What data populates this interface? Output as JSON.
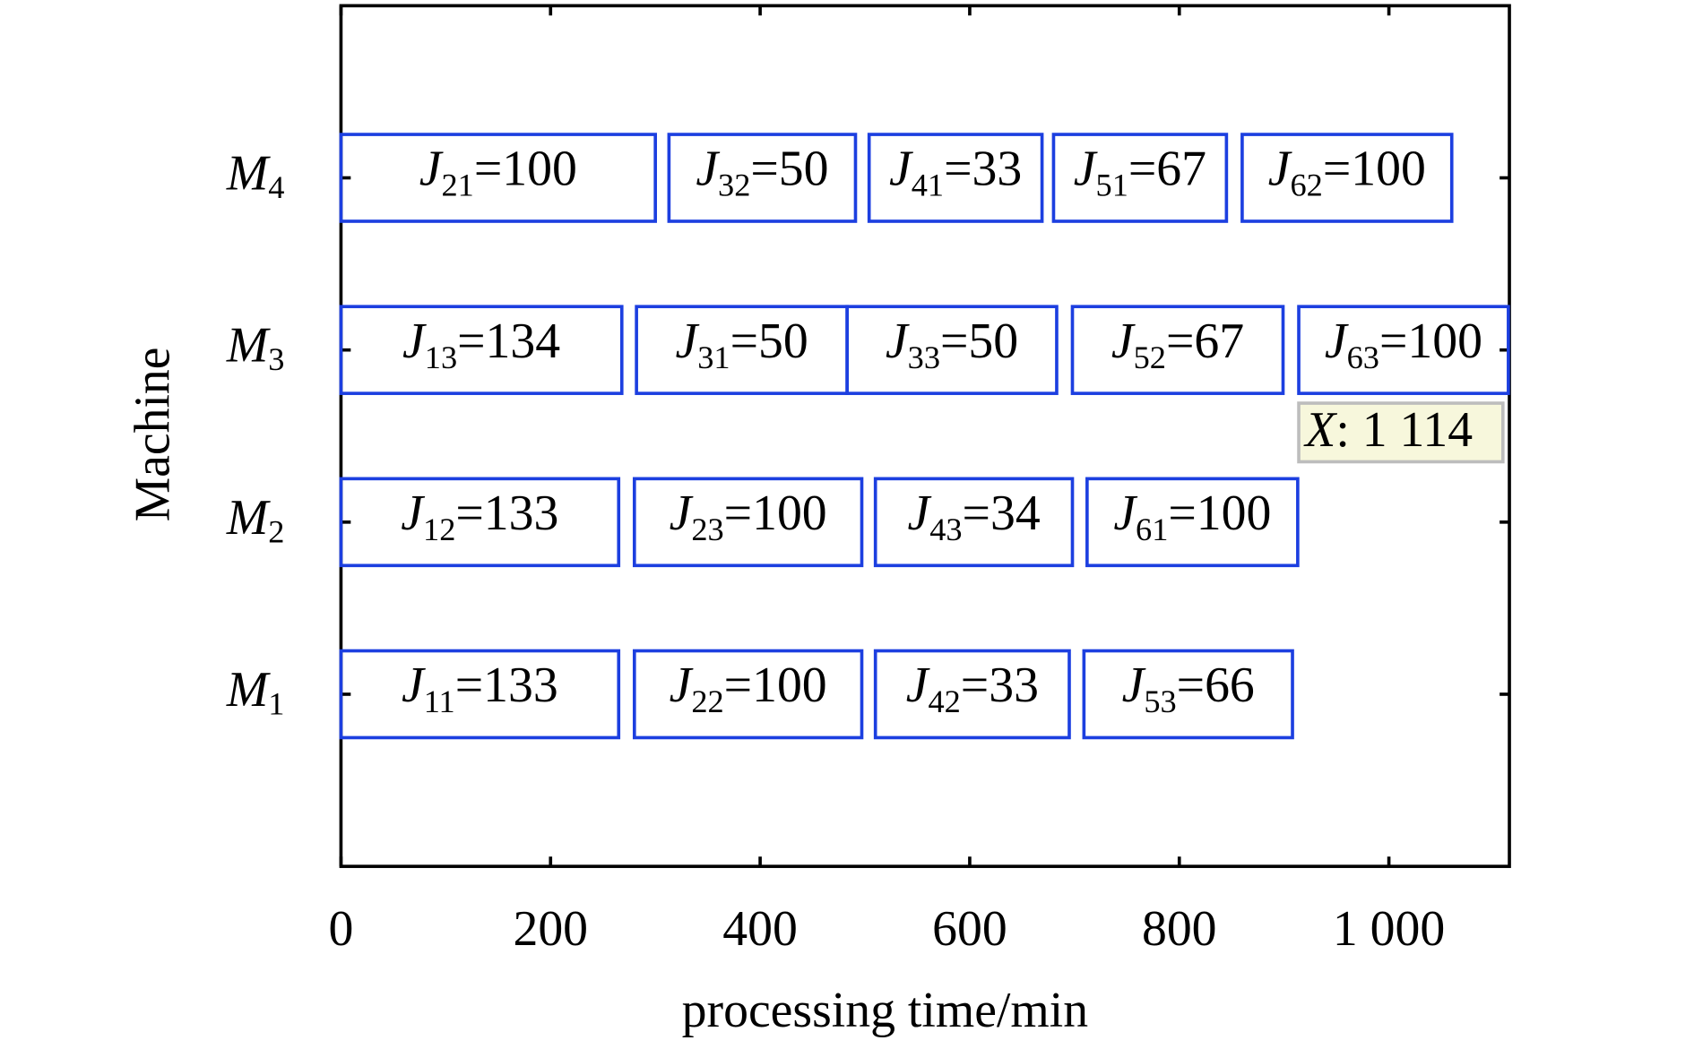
{
  "chart_data": {
    "type": "gantt",
    "xlabel": "processing time/min",
    "ylabel": "Machine",
    "xlim": [
      0,
      1115
    ],
    "xticks": [
      0,
      200,
      400,
      600,
      800,
      {
        "value": 1000,
        "label": "1 000"
      }
    ],
    "color": "#1c3fe0",
    "machines": [
      {
        "symbol": "M",
        "sub": "1",
        "tasks": [
          {
            "job": "J",
            "sub": "11",
            "text": "=133",
            "start": 0,
            "end": 265
          },
          {
            "job": "J",
            "sub": "22",
            "text": "=100",
            "start": 280,
            "end": 497
          },
          {
            "job": "J",
            "sub": "42",
            "text": "=33",
            "start": 510,
            "end": 695
          },
          {
            "job": "J",
            "sub": "53",
            "text": "=66",
            "start": 709,
            "end": 908
          }
        ]
      },
      {
        "symbol": "M",
        "sub": "2",
        "tasks": [
          {
            "job": "J",
            "sub": "12",
            "text": "=133",
            "start": 0,
            "end": 265
          },
          {
            "job": "J",
            "sub": "23",
            "text": "=100",
            "start": 280,
            "end": 497
          },
          {
            "job": "J",
            "sub": "43",
            "text": "=34",
            "start": 510,
            "end": 698
          },
          {
            "job": "J",
            "sub": "61",
            "text": "=100",
            "start": 712,
            "end": 913
          }
        ]
      },
      {
        "symbol": "M",
        "sub": "3",
        "tasks": [
          {
            "job": "J",
            "sub": "13",
            "text": "=134",
            "start": 0,
            "end": 268
          },
          {
            "job": "J",
            "sub": "31",
            "text": "=50",
            "start": 282,
            "end": 483
          },
          {
            "job": "J",
            "sub": "33",
            "text": "=50",
            "start": 483,
            "end": 683
          },
          {
            "job": "J",
            "sub": "52",
            "text": "=67",
            "start": 698,
            "end": 899
          },
          {
            "job": "J",
            "sub": "63",
            "text": "=100",
            "start": 914,
            "end": 1114
          }
        ]
      },
      {
        "symbol": "M",
        "sub": "4",
        "tasks": [
          {
            "job": "J",
            "sub": "21",
            "text": "=100",
            "start": 0,
            "end": 300
          },
          {
            "job": "J",
            "sub": "32",
            "text": "=50",
            "start": 313,
            "end": 491
          },
          {
            "job": "J",
            "sub": "41",
            "text": "=33",
            "start": 504,
            "end": 669
          },
          {
            "job": "J",
            "sub": "51",
            "text": "=67",
            "start": 680,
            "end": 845
          },
          {
            "job": "J",
            "sub": "62",
            "text": "=100",
            "start": 860,
            "end": 1060
          }
        ]
      }
    ],
    "annotation": {
      "symbol": "X",
      "text": ": 1 114"
    }
  }
}
